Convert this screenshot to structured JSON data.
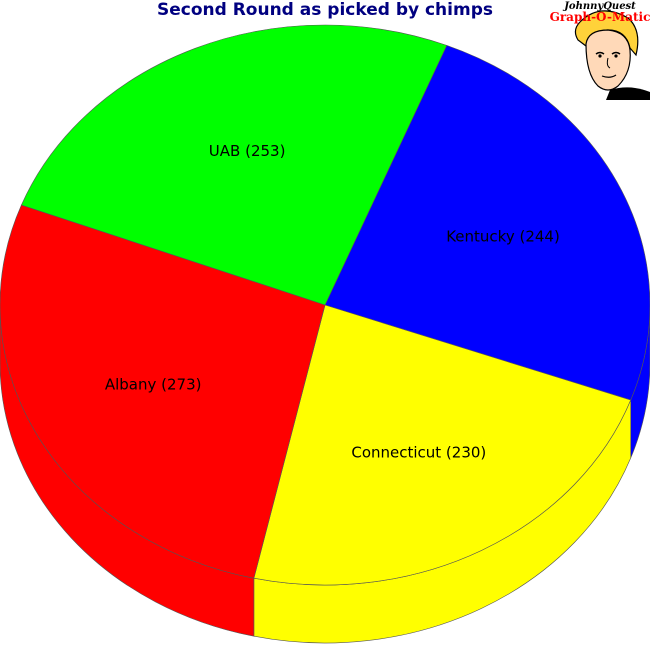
{
  "chart_data": {
    "type": "pie",
    "title": "Second Round as picked by chimps",
    "slices": [
      {
        "name": "Kentucky",
        "value": 244,
        "label": "Kentucky (244)",
        "color": "#0000ff"
      },
      {
        "name": "Connecticut",
        "value": 230,
        "label": "Connecticut (230)",
        "color": "#ffff00"
      },
      {
        "name": "Albany",
        "value": 273,
        "label": "Albany (273)",
        "color": "#ff0000"
      },
      {
        "name": "UAB",
        "value": 253,
        "label": "UAB (253)",
        "color": "#00ff00"
      }
    ],
    "style": "3d-tilted"
  },
  "logo": {
    "line1": "JohnnyQuest",
    "line2": "Graph-O-Matic"
  }
}
